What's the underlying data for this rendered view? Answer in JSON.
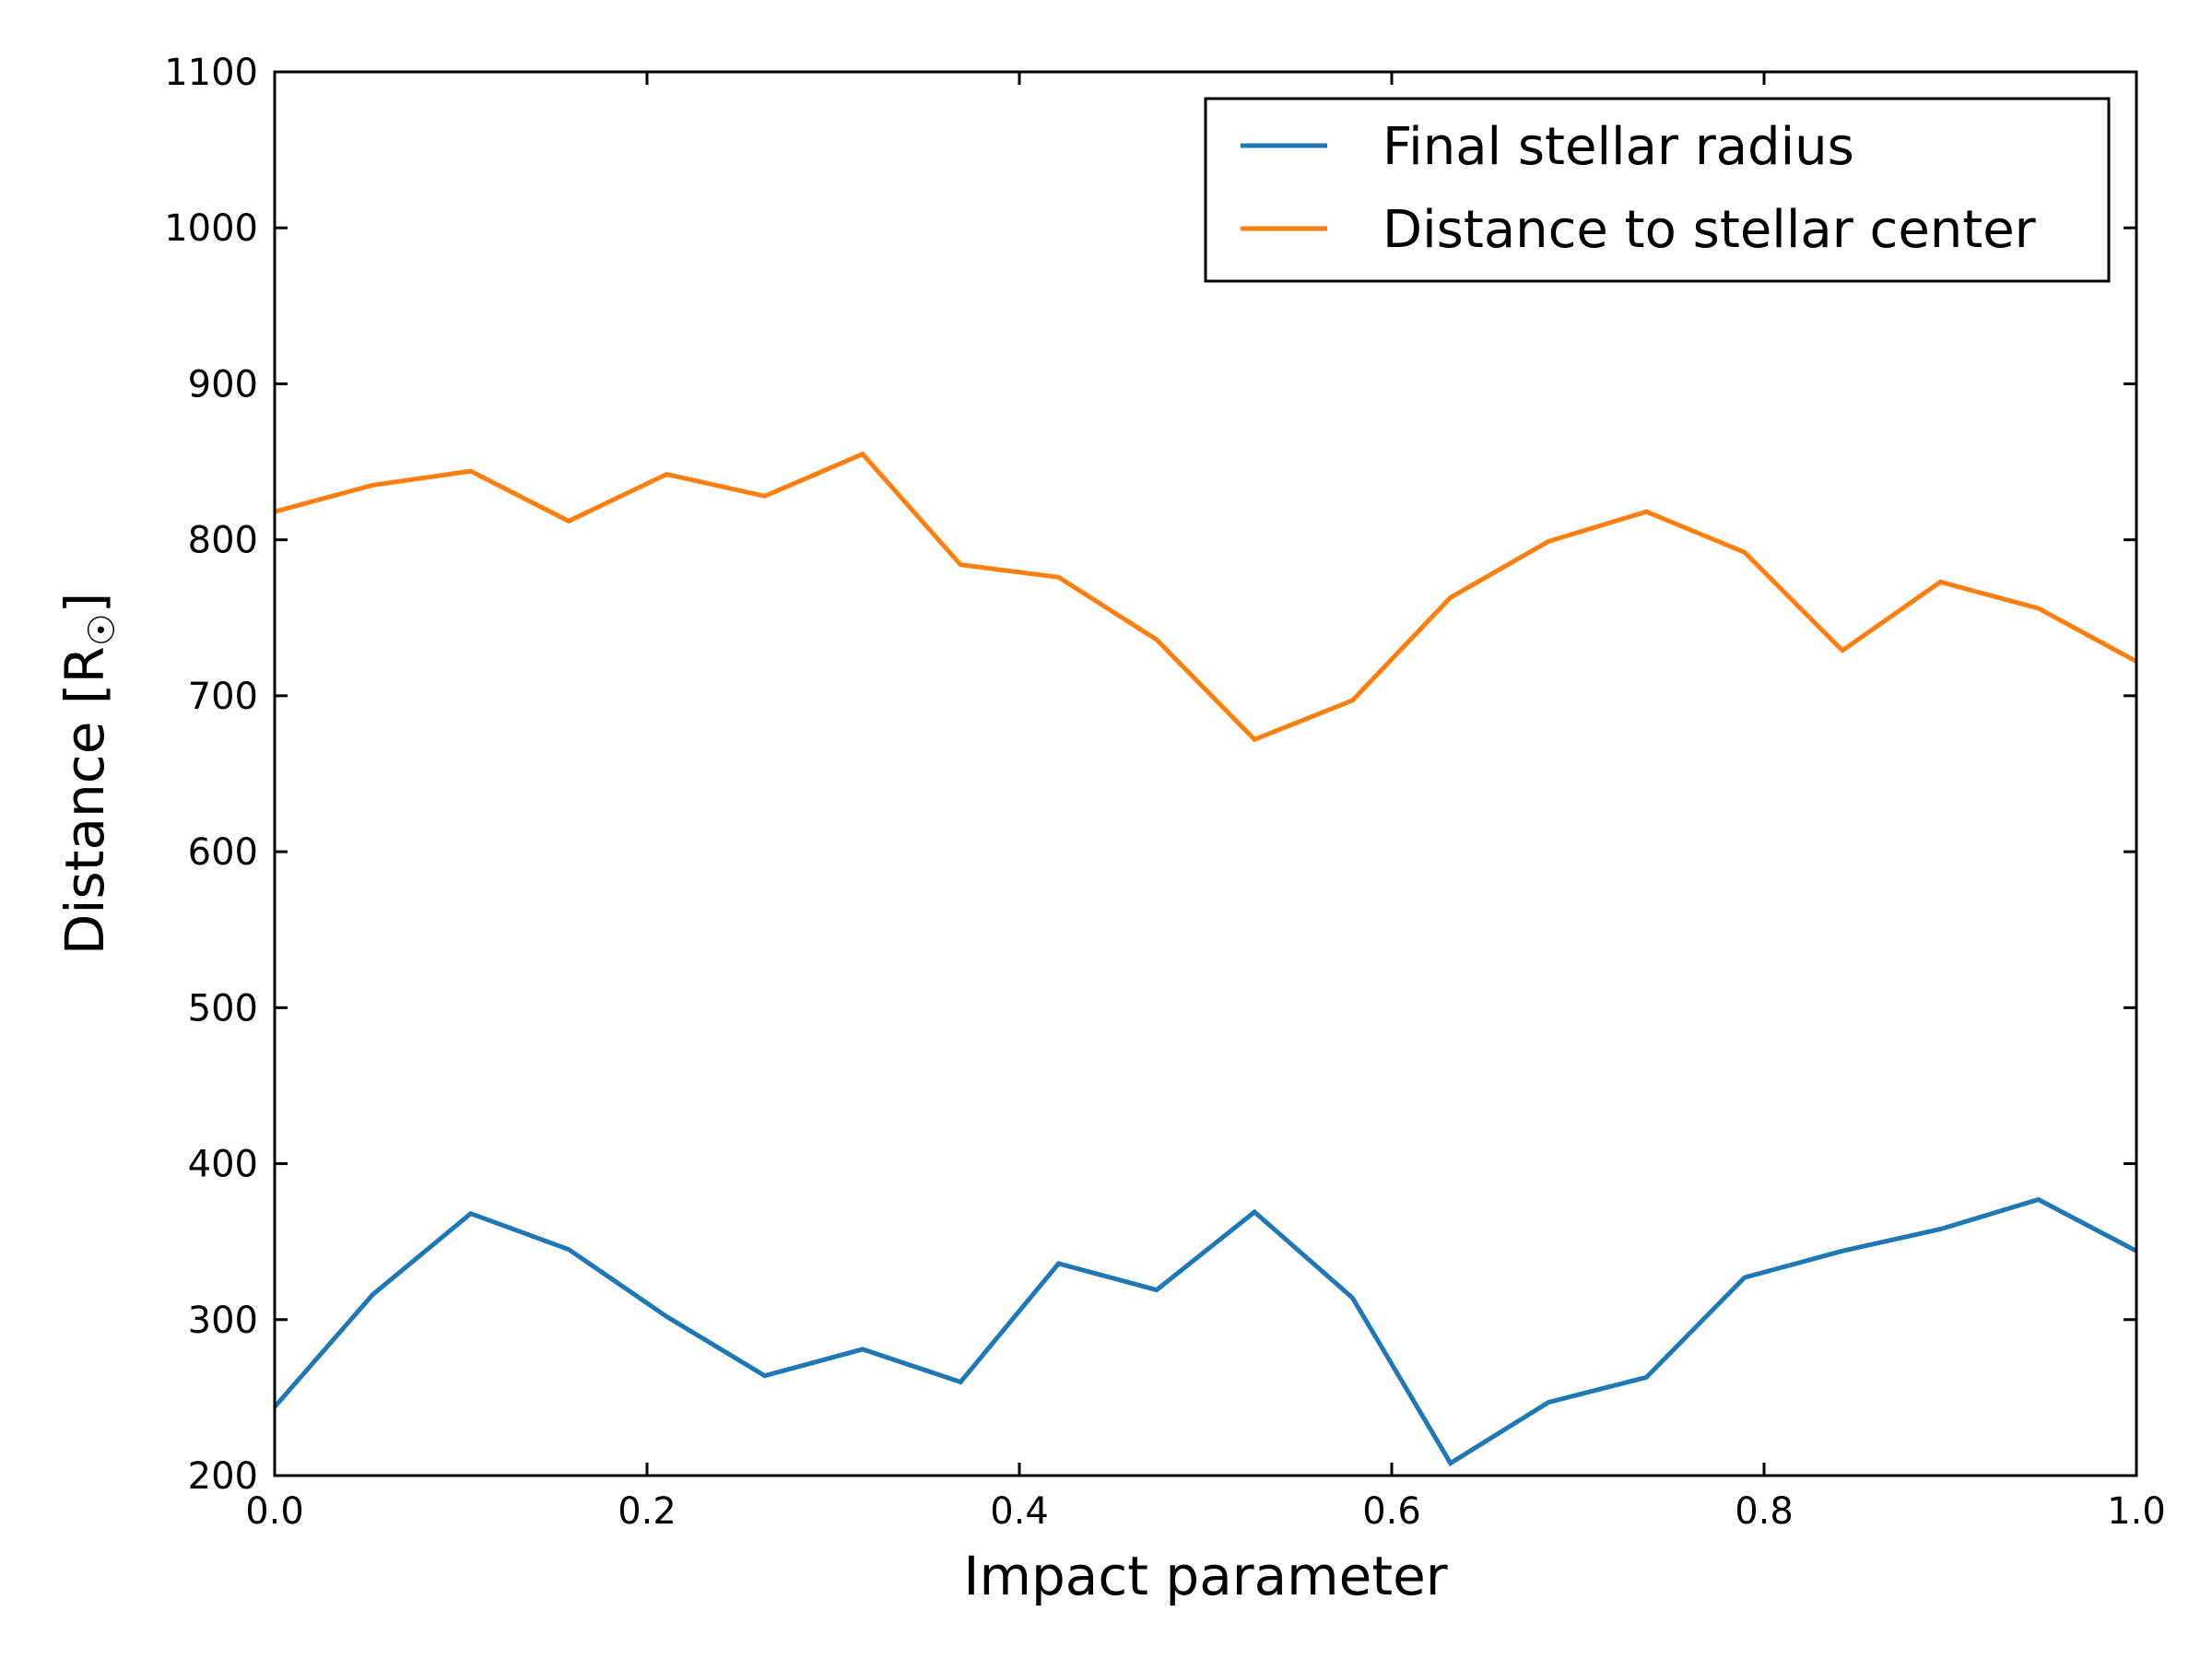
{
  "chart_data": {
    "type": "line",
    "xlabel": "Impact parameter",
    "ylabel": "Distance [R",
    "ylabel_sub": "☉",
    "ylabel_close": "]",
    "xlim": [
      0.0,
      1.0
    ],
    "ylim": [
      200,
      1100
    ],
    "xticks": [
      0.0,
      0.2,
      0.4,
      0.6,
      0.8,
      1.0
    ],
    "xtick_labels": [
      "0.0",
      "0.2",
      "0.4",
      "0.6",
      "0.8",
      "1.0"
    ],
    "yticks": [
      200,
      300,
      400,
      500,
      600,
      700,
      800,
      900,
      1000,
      1100
    ],
    "ytick_labels": [
      "200",
      "300",
      "400",
      "500",
      "600",
      "700",
      "800",
      "900",
      "1000",
      "1100"
    ],
    "grid": false,
    "legend_position": "top-right",
    "x": [
      0.0,
      0.0526,
      0.1053,
      0.1579,
      0.2105,
      0.2632,
      0.3158,
      0.3684,
      0.4211,
      0.4737,
      0.5263,
      0.5789,
      0.6316,
      0.6842,
      0.7368,
      0.7895,
      0.8421,
      0.8947,
      0.9474,
      1.0
    ],
    "series": [
      {
        "name": "Final stellar radius",
        "color": "#1f77b4",
        "values": [
          244,
          316,
          368,
          345,
          302,
          264,
          281,
          260,
          336,
          319,
          369,
          314,
          208,
          247,
          263,
          327,
          344,
          358,
          377,
          344
        ]
      },
      {
        "name": "Distance to stellar center",
        "color": "#ff7f0e",
        "values": [
          818,
          835,
          844,
          812,
          842,
          828,
          855,
          784,
          776,
          736,
          672,
          697,
          763,
          799,
          818,
          792,
          729,
          773,
          756,
          722
        ]
      }
    ]
  }
}
